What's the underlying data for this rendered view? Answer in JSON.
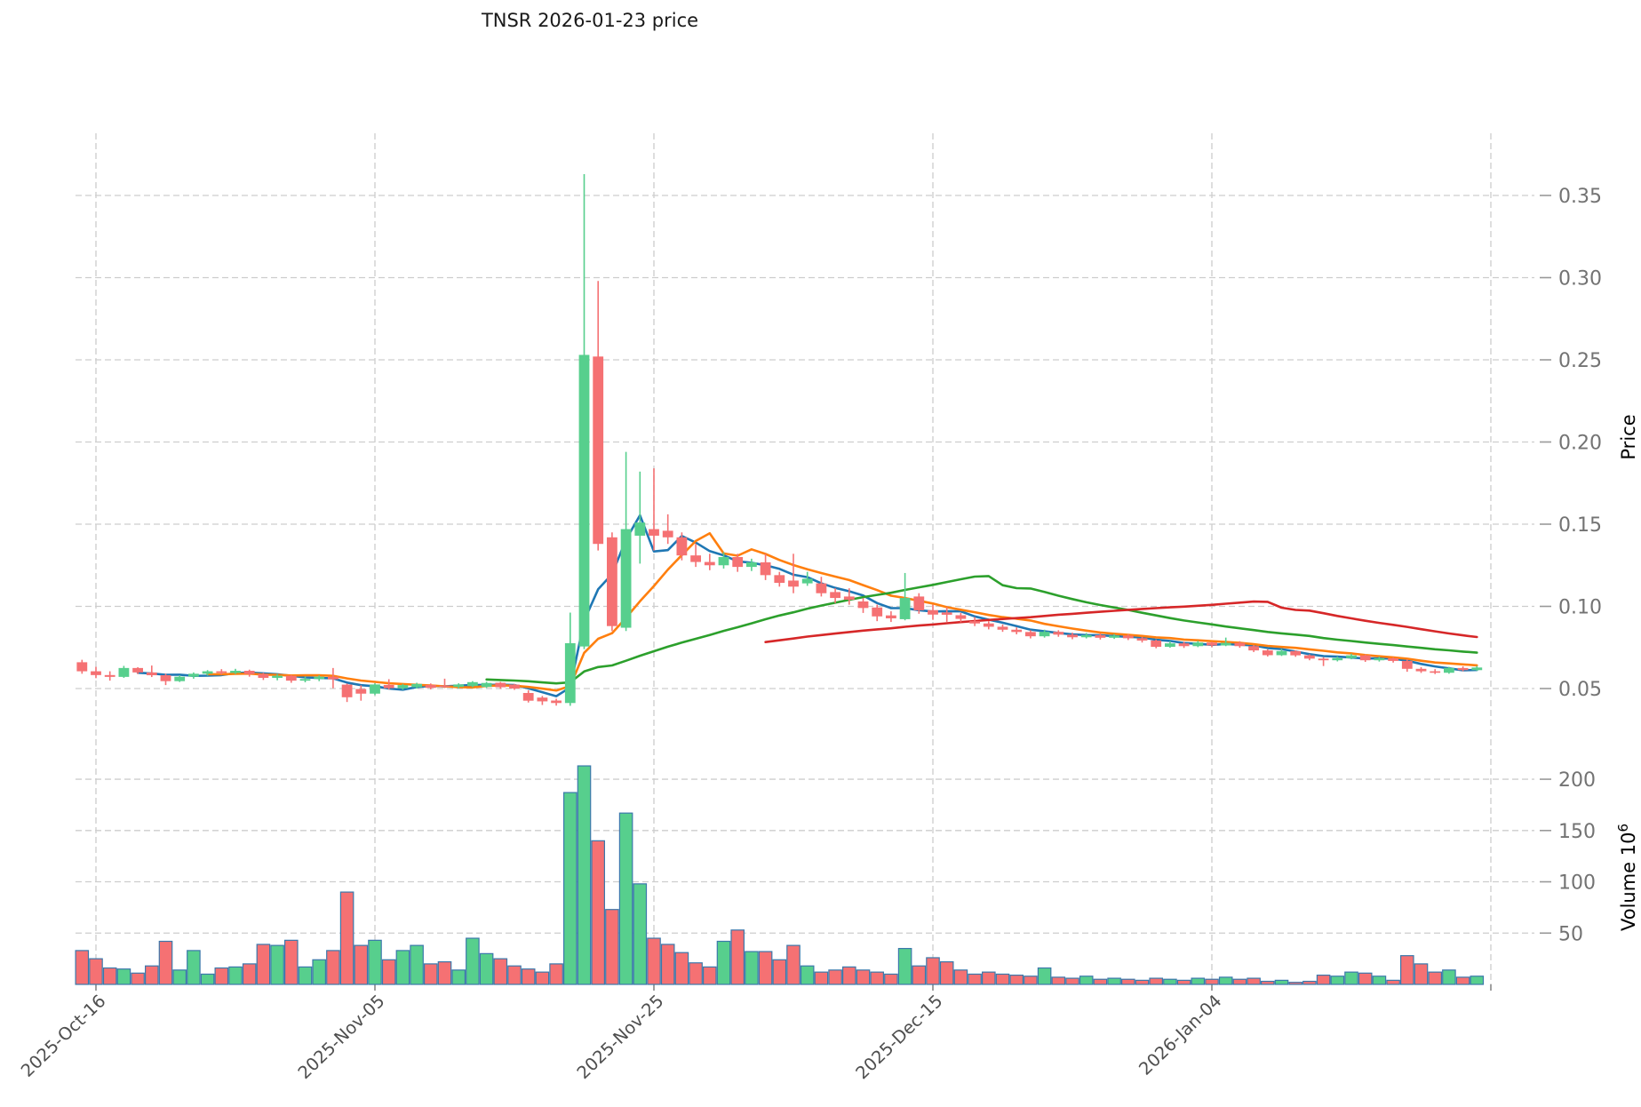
{
  "title": "TNSR  2026-01-23  price",
  "chart_data": {
    "type": "candlestick+volume",
    "title": "TNSR  2026-01-23  price",
    "grid": true,
    "price_axis": {
      "label": "Price",
      "side": "right",
      "ticks": [
        0.05,
        0.1,
        0.15,
        0.2,
        0.25,
        0.3,
        0.35
      ],
      "range": [
        0.03,
        0.388
      ]
    },
    "volume_axis": {
      "label": "Volume",
      "unit_exponent": "6",
      "unit_base": "10",
      "side": "right",
      "ticks": [
        50,
        100,
        150,
        200
      ],
      "range": [
        0,
        232
      ]
    },
    "x_axis": {
      "ticks": [
        {
          "index": 1,
          "label": "2025-Oct-16"
        },
        {
          "index": 21,
          "label": "2025-Nov-05"
        },
        {
          "index": 41,
          "label": "2025-Nov-25"
        },
        {
          "index": 61,
          "label": "2025-Dec-15"
        },
        {
          "index": 81,
          "label": "2026-Jan-04"
        },
        {
          "index": 101,
          "label": ""
        }
      ]
    },
    "moving_averages": [
      {
        "name": "mav-5",
        "window": 5,
        "color": "#1f77b4"
      },
      {
        "name": "mav-10",
        "window": 10,
        "color": "#ff7f0e"
      },
      {
        "name": "mav-30",
        "window": 30,
        "color": "#2ca02c"
      },
      {
        "name": "mav-50",
        "window": 50,
        "color": "#d62728"
      }
    ],
    "colors": {
      "up": "#57cf8d",
      "down": "#f57173",
      "volume_border": "#3b78ab",
      "grid": "#cdcdcd",
      "axis_tick_text": "#737373",
      "date_tick_text": "#4f4f4f",
      "title_text": "#1a1a1a",
      "background": "#ffffff"
    },
    "candles": [
      {
        "d": "2025-10-15",
        "o": 0.066,
        "h": 0.0675,
        "l": 0.059,
        "c": 0.0605,
        "v": 33
      },
      {
        "d": "2025-10-16",
        "o": 0.0605,
        "h": 0.0632,
        "l": 0.0563,
        "c": 0.0582,
        "v": 25
      },
      {
        "d": "2025-10-17",
        "o": 0.0582,
        "h": 0.0605,
        "l": 0.0548,
        "c": 0.0571,
        "v": 16
      },
      {
        "d": "2025-10-18",
        "o": 0.0571,
        "h": 0.0638,
        "l": 0.0565,
        "c": 0.0625,
        "v": 15
      },
      {
        "d": "2025-10-19",
        "o": 0.0625,
        "h": 0.063,
        "l": 0.0588,
        "c": 0.0598,
        "v": 11
      },
      {
        "d": "2025-10-20",
        "o": 0.0598,
        "h": 0.064,
        "l": 0.057,
        "c": 0.0581,
        "v": 18
      },
      {
        "d": "2025-10-21",
        "o": 0.0581,
        "h": 0.059,
        "l": 0.0521,
        "c": 0.0545,
        "v": 42
      },
      {
        "d": "2025-10-22",
        "o": 0.0545,
        "h": 0.0581,
        "l": 0.054,
        "c": 0.0572,
        "v": 14
      },
      {
        "d": "2025-10-23",
        "o": 0.0572,
        "h": 0.0598,
        "l": 0.056,
        "c": 0.059,
        "v": 33
      },
      {
        "d": "2025-10-24",
        "o": 0.059,
        "h": 0.0612,
        "l": 0.0578,
        "c": 0.0605,
        "v": 10
      },
      {
        "d": "2025-10-25",
        "o": 0.0605,
        "h": 0.0618,
        "l": 0.0585,
        "c": 0.0595,
        "v": 16
      },
      {
        "d": "2025-10-26",
        "o": 0.0595,
        "h": 0.062,
        "l": 0.0588,
        "c": 0.0608,
        "v": 17
      },
      {
        "d": "2025-10-27",
        "o": 0.0608,
        "h": 0.0615,
        "l": 0.0572,
        "c": 0.0588,
        "v": 20
      },
      {
        "d": "2025-10-28",
        "o": 0.0588,
        "h": 0.0596,
        "l": 0.0552,
        "c": 0.0565,
        "v": 39
      },
      {
        "d": "2025-10-29",
        "o": 0.0565,
        "h": 0.0588,
        "l": 0.055,
        "c": 0.0578,
        "v": 38
      },
      {
        "d": "2025-10-30",
        "o": 0.0578,
        "h": 0.0582,
        "l": 0.0535,
        "c": 0.0548,
        "v": 43
      },
      {
        "d": "2025-10-31",
        "o": 0.0548,
        "h": 0.0572,
        "l": 0.0538,
        "c": 0.0558,
        "v": 17
      },
      {
        "d": "2025-11-01",
        "o": 0.0558,
        "h": 0.058,
        "l": 0.0545,
        "c": 0.0572,
        "v": 24
      },
      {
        "d": "2025-11-02",
        "o": 0.0572,
        "h": 0.0625,
        "l": 0.0502,
        "c": 0.0556,
        "v": 33
      },
      {
        "d": "2025-11-03",
        "o": 0.0524,
        "h": 0.053,
        "l": 0.0418,
        "c": 0.0447,
        "v": 90
      },
      {
        "d": "2025-11-04",
        "o": 0.0497,
        "h": 0.052,
        "l": 0.0426,
        "c": 0.0469,
        "v": 38
      },
      {
        "d": "2025-11-05",
        "o": 0.0469,
        "h": 0.0532,
        "l": 0.046,
        "c": 0.0525,
        "v": 43
      },
      {
        "d": "2025-11-06",
        "o": 0.0522,
        "h": 0.0557,
        "l": 0.0494,
        "c": 0.0502,
        "v": 24
      },
      {
        "d": "2025-11-07",
        "o": 0.0502,
        "h": 0.0528,
        "l": 0.0492,
        "c": 0.0521,
        "v": 33
      },
      {
        "d": "2025-11-08",
        "o": 0.0508,
        "h": 0.0535,
        "l": 0.05,
        "c": 0.0528,
        "v": 38
      },
      {
        "d": "2025-11-09",
        "o": 0.0522,
        "h": 0.0531,
        "l": 0.0495,
        "c": 0.0504,
        "v": 20
      },
      {
        "d": "2025-11-10",
        "o": 0.0518,
        "h": 0.056,
        "l": 0.0503,
        "c": 0.051,
        "v": 22
      },
      {
        "d": "2025-11-11",
        "o": 0.051,
        "h": 0.0532,
        "l": 0.0501,
        "c": 0.0525,
        "v": 14
      },
      {
        "d": "2025-11-12",
        "o": 0.0516,
        "h": 0.0545,
        "l": 0.0508,
        "c": 0.0539,
        "v": 45
      },
      {
        "d": "2025-11-13",
        "o": 0.051,
        "h": 0.0541,
        "l": 0.0504,
        "c": 0.0534,
        "v": 30
      },
      {
        "d": "2025-11-14",
        "o": 0.0535,
        "h": 0.054,
        "l": 0.0498,
        "c": 0.0508,
        "v": 25
      },
      {
        "d": "2025-11-15",
        "o": 0.0524,
        "h": 0.0528,
        "l": 0.0492,
        "c": 0.05,
        "v": 18
      },
      {
        "d": "2025-11-16",
        "o": 0.0473,
        "h": 0.049,
        "l": 0.0415,
        "c": 0.0426,
        "v": 15
      },
      {
        "d": "2025-11-17",
        "o": 0.0445,
        "h": 0.0455,
        "l": 0.04,
        "c": 0.0422,
        "v": 12
      },
      {
        "d": "2025-11-18",
        "o": 0.0427,
        "h": 0.0438,
        "l": 0.0396,
        "c": 0.0412,
        "v": 20
      },
      {
        "d": "2025-11-19",
        "o": 0.0412,
        "h": 0.0962,
        "l": 0.0395,
        "c": 0.0776,
        "v": 187
      },
      {
        "d": "2025-11-20",
        "o": 0.0756,
        "h": 0.363,
        "l": 0.074,
        "c": 0.253,
        "v": 213
      },
      {
        "d": "2025-11-21",
        "o": 0.252,
        "h": 0.298,
        "l": 0.134,
        "c": 0.138,
        "v": 140
      },
      {
        "d": "2025-11-22",
        "o": 0.142,
        "h": 0.145,
        "l": 0.085,
        "c": 0.088,
        "v": 73
      },
      {
        "d": "2025-11-23",
        "o": 0.087,
        "h": 0.194,
        "l": 0.085,
        "c": 0.147,
        "v": 167
      },
      {
        "d": "2025-11-24",
        "o": 0.143,
        "h": 0.182,
        "l": 0.126,
        "c": 0.151,
        "v": 98
      },
      {
        "d": "2025-11-25",
        "o": 0.147,
        "h": 0.184,
        "l": 0.134,
        "c": 0.143,
        "v": 45
      },
      {
        "d": "2025-11-26",
        "o": 0.146,
        "h": 0.156,
        "l": 0.138,
        "c": 0.142,
        "v": 39
      },
      {
        "d": "2025-11-27",
        "o": 0.142,
        "h": 0.145,
        "l": 0.128,
        "c": 0.131,
        "v": 31
      },
      {
        "d": "2025-11-28",
        "o": 0.131,
        "h": 0.138,
        "l": 0.124,
        "c": 0.127,
        "v": 21
      },
      {
        "d": "2025-11-29",
        "o": 0.127,
        "h": 0.132,
        "l": 0.122,
        "c": 0.125,
        "v": 17
      },
      {
        "d": "2025-11-30",
        "o": 0.125,
        "h": 0.133,
        "l": 0.123,
        "c": 0.13,
        "v": 42
      },
      {
        "d": "2025-12-01",
        "o": 0.13,
        "h": 0.132,
        "l": 0.121,
        "c": 0.124,
        "v": 53
      },
      {
        "d": "2025-12-02",
        "o": 0.124,
        "h": 0.129,
        "l": 0.1215,
        "c": 0.1268,
        "v": 32
      },
      {
        "d": "2025-12-03",
        "o": 0.1268,
        "h": 0.132,
        "l": 0.116,
        "c": 0.119,
        "v": 32
      },
      {
        "d": "2025-12-04",
        "o": 0.119,
        "h": 0.121,
        "l": 0.112,
        "c": 0.1143,
        "v": 24
      },
      {
        "d": "2025-12-05",
        "o": 0.1157,
        "h": 0.132,
        "l": 0.108,
        "c": 0.112,
        "v": 38
      },
      {
        "d": "2025-12-06",
        "o": 0.114,
        "h": 0.121,
        "l": 0.1125,
        "c": 0.1168,
        "v": 18
      },
      {
        "d": "2025-12-07",
        "o": 0.114,
        "h": 0.118,
        "l": 0.106,
        "c": 0.108,
        "v": 12
      },
      {
        "d": "2025-12-08",
        "o": 0.1087,
        "h": 0.111,
        "l": 0.102,
        "c": 0.1051,
        "v": 14
      },
      {
        "d": "2025-12-09",
        "o": 0.106,
        "h": 0.111,
        "l": 0.101,
        "c": 0.104,
        "v": 17
      },
      {
        "d": "2025-12-10",
        "o": 0.103,
        "h": 0.105,
        "l": 0.096,
        "c": 0.099,
        "v": 14
      },
      {
        "d": "2025-12-11",
        "o": 0.0993,
        "h": 0.101,
        "l": 0.091,
        "c": 0.0939,
        "v": 12
      },
      {
        "d": "2025-12-12",
        "o": 0.0945,
        "h": 0.097,
        "l": 0.0905,
        "c": 0.0927,
        "v": 10
      },
      {
        "d": "2025-12-13",
        "o": 0.0922,
        "h": 0.1203,
        "l": 0.0915,
        "c": 0.1051,
        "v": 35
      },
      {
        "d": "2025-12-14",
        "o": 0.106,
        "h": 0.108,
        "l": 0.0955,
        "c": 0.0976,
        "v": 18
      },
      {
        "d": "2025-12-15",
        "o": 0.0977,
        "h": 0.101,
        "l": 0.0918,
        "c": 0.095,
        "v": 26
      },
      {
        "d": "2025-12-16",
        "o": 0.0963,
        "h": 0.0995,
        "l": 0.0906,
        "c": 0.0949,
        "v": 22
      },
      {
        "d": "2025-12-17",
        "o": 0.0946,
        "h": 0.096,
        "l": 0.0903,
        "c": 0.0924,
        "v": 14
      },
      {
        "d": "2025-12-18",
        "o": 0.091,
        "h": 0.0935,
        "l": 0.088,
        "c": 0.0896,
        "v": 10
      },
      {
        "d": "2025-12-19",
        "o": 0.0896,
        "h": 0.091,
        "l": 0.086,
        "c": 0.0876,
        "v": 12
      },
      {
        "d": "2025-12-20",
        "o": 0.0876,
        "h": 0.089,
        "l": 0.0845,
        "c": 0.0858,
        "v": 10
      },
      {
        "d": "2025-12-21",
        "o": 0.0858,
        "h": 0.0872,
        "l": 0.083,
        "c": 0.0844,
        "v": 9
      },
      {
        "d": "2025-12-22",
        "o": 0.0844,
        "h": 0.0855,
        "l": 0.0805,
        "c": 0.0818,
        "v": 8
      },
      {
        "d": "2025-12-23",
        "o": 0.0818,
        "h": 0.0858,
        "l": 0.081,
        "c": 0.0845,
        "v": 16
      },
      {
        "d": "2025-12-24",
        "o": 0.0845,
        "h": 0.0855,
        "l": 0.0815,
        "c": 0.0828,
        "v": 7
      },
      {
        "d": "2025-12-25",
        "o": 0.0828,
        "h": 0.084,
        "l": 0.08,
        "c": 0.0812,
        "v": 6
      },
      {
        "d": "2025-12-26",
        "o": 0.0812,
        "h": 0.0838,
        "l": 0.0805,
        "c": 0.0825,
        "v": 8
      },
      {
        "d": "2025-12-27",
        "o": 0.0825,
        "h": 0.0835,
        "l": 0.0798,
        "c": 0.0809,
        "v": 5
      },
      {
        "d": "2025-12-28",
        "o": 0.0809,
        "h": 0.0832,
        "l": 0.0802,
        "c": 0.0822,
        "v": 6
      },
      {
        "d": "2025-12-29",
        "o": 0.0822,
        "h": 0.083,
        "l": 0.0795,
        "c": 0.0806,
        "v": 5
      },
      {
        "d": "2025-12-30",
        "o": 0.0806,
        "h": 0.0815,
        "l": 0.078,
        "c": 0.0792,
        "v": 4
      },
      {
        "d": "2025-12-31",
        "o": 0.0792,
        "h": 0.0798,
        "l": 0.0745,
        "c": 0.0754,
        "v": 6
      },
      {
        "d": "2026-01-01",
        "o": 0.0754,
        "h": 0.0788,
        "l": 0.0748,
        "c": 0.0775,
        "v": 5
      },
      {
        "d": "2026-01-02",
        "o": 0.0775,
        "h": 0.0785,
        "l": 0.0747,
        "c": 0.0758,
        "v": 4
      },
      {
        "d": "2026-01-03",
        "o": 0.0758,
        "h": 0.079,
        "l": 0.0752,
        "c": 0.078,
        "v": 6
      },
      {
        "d": "2026-01-04",
        "o": 0.078,
        "h": 0.0785,
        "l": 0.0752,
        "c": 0.0762,
        "v": 5
      },
      {
        "d": "2026-01-05",
        "o": 0.0762,
        "h": 0.081,
        "l": 0.0758,
        "c": 0.0778,
        "v": 7
      },
      {
        "d": "2026-01-06",
        "o": 0.0778,
        "h": 0.0788,
        "l": 0.0748,
        "c": 0.0758,
        "v": 5
      },
      {
        "d": "2026-01-07",
        "o": 0.0758,
        "h": 0.0765,
        "l": 0.0722,
        "c": 0.0732,
        "v": 6
      },
      {
        "d": "2026-01-08",
        "o": 0.0732,
        "h": 0.0738,
        "l": 0.0695,
        "c": 0.0703,
        "v": 3
      },
      {
        "d": "2026-01-09",
        "o": 0.0703,
        "h": 0.0742,
        "l": 0.0698,
        "c": 0.0728,
        "v": 4
      },
      {
        "d": "2026-01-10",
        "o": 0.0728,
        "h": 0.0732,
        "l": 0.0693,
        "c": 0.0702,
        "v": 2
      },
      {
        "d": "2026-01-11",
        "o": 0.0702,
        "h": 0.0708,
        "l": 0.0672,
        "c": 0.0682,
        "v": 3
      },
      {
        "d": "2026-01-12",
        "o": 0.0682,
        "h": 0.069,
        "l": 0.0637,
        "c": 0.0672,
        "v": 9
      },
      {
        "d": "2026-01-13",
        "o": 0.0672,
        "h": 0.0695,
        "l": 0.0665,
        "c": 0.0685,
        "v": 8
      },
      {
        "d": "2026-01-14",
        "o": 0.0685,
        "h": 0.0712,
        "l": 0.0678,
        "c": 0.0702,
        "v": 12
      },
      {
        "d": "2026-01-15",
        "o": 0.0702,
        "h": 0.0708,
        "l": 0.0662,
        "c": 0.0672,
        "v": 11
      },
      {
        "d": "2026-01-16",
        "o": 0.0672,
        "h": 0.0694,
        "l": 0.0664,
        "c": 0.0684,
        "v": 8
      },
      {
        "d": "2026-01-17",
        "o": 0.0684,
        "h": 0.069,
        "l": 0.0658,
        "c": 0.0668,
        "v": 4
      },
      {
        "d": "2026-01-18",
        "o": 0.0668,
        "h": 0.0678,
        "l": 0.0602,
        "c": 0.062,
        "v": 28
      },
      {
        "d": "2026-01-19",
        "o": 0.062,
        "h": 0.063,
        "l": 0.0595,
        "c": 0.0605,
        "v": 20
      },
      {
        "d": "2026-01-20",
        "o": 0.0605,
        "h": 0.0618,
        "l": 0.0588,
        "c": 0.0596,
        "v": 12
      },
      {
        "d": "2026-01-21",
        "o": 0.0596,
        "h": 0.0632,
        "l": 0.059,
        "c": 0.0625,
        "v": 14
      },
      {
        "d": "2026-01-22",
        "o": 0.0625,
        "h": 0.0635,
        "l": 0.0605,
        "c": 0.0612,
        "v": 7
      },
      {
        "d": "2026-01-23",
        "o": 0.0612,
        "h": 0.0638,
        "l": 0.0608,
        "c": 0.0628,
        "v": 8
      }
    ]
  }
}
